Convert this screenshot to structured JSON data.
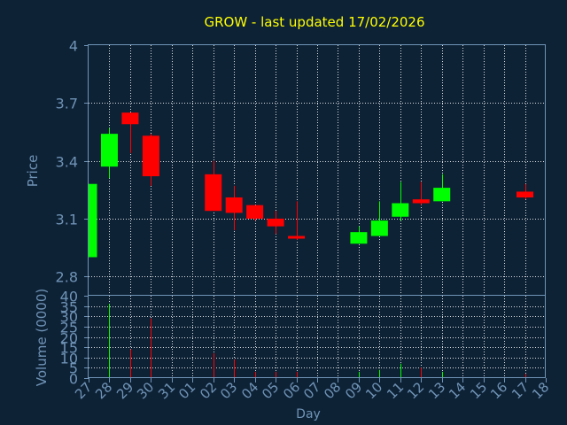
{
  "chart_data": [
    {
      "type": "candlestick",
      "title": "GROW - last updated 17/02/2026",
      "ylabel": "Price",
      "ylim": [
        2.7,
        4.0
      ],
      "yticks": [
        "4",
        "3.7",
        "3.4",
        "3.1",
        "2.8"
      ],
      "ytick_values": [
        4.0,
        3.7,
        3.4,
        3.1,
        2.8
      ],
      "grid": true,
      "up_color": "#00ff00",
      "down_color": "#ff0000",
      "x": [
        "27",
        "28",
        "29",
        "30",
        "31",
        "01",
        "02",
        "03",
        "04",
        "05",
        "06",
        "07",
        "08",
        "09",
        "10",
        "11",
        "12",
        "13",
        "14",
        "15",
        "16",
        "17",
        "18"
      ],
      "candles": [
        {
          "day": "27",
          "open": 2.9,
          "high": 3.28,
          "low": 2.9,
          "close": 3.28
        },
        {
          "day": "28",
          "open": 3.37,
          "high": 3.57,
          "low": 3.31,
          "close": 3.54
        },
        {
          "day": "29",
          "open": 3.65,
          "high": 3.65,
          "low": 3.44,
          "close": 3.59
        },
        {
          "day": "30",
          "open": 3.53,
          "high": 3.54,
          "low": 3.27,
          "close": 3.32
        },
        {
          "day": "02",
          "open": 3.33,
          "high": 3.4,
          "low": 3.14,
          "close": 3.14
        },
        {
          "day": "03",
          "open": 3.21,
          "high": 3.27,
          "low": 3.04,
          "close": 3.13
        },
        {
          "day": "04",
          "open": 3.17,
          "high": 3.17,
          "low": 3.09,
          "close": 3.1
        },
        {
          "day": "05",
          "open": 3.1,
          "high": 3.14,
          "low": 3.02,
          "close": 3.06
        },
        {
          "day": "06",
          "open": 3.01,
          "high": 3.19,
          "low": 2.99,
          "close": 3.0
        },
        {
          "day": "09",
          "open": 2.97,
          "high": 3.06,
          "low": 2.97,
          "close": 3.03
        },
        {
          "day": "10",
          "open": 3.01,
          "high": 3.19,
          "low": 3.01,
          "close": 3.09
        },
        {
          "day": "11",
          "open": 3.11,
          "high": 3.29,
          "low": 3.09,
          "close": 3.18
        },
        {
          "day": "12",
          "open": 3.2,
          "high": 3.29,
          "low": 3.17,
          "close": 3.18
        },
        {
          "day": "13",
          "open": 3.19,
          "high": 3.33,
          "low": 3.19,
          "close": 3.26
        },
        {
          "day": "17",
          "open": 3.24,
          "high": 3.28,
          "low": 3.2,
          "close": 3.21
        }
      ]
    },
    {
      "type": "bar",
      "ylabel": "Volume (0000)",
      "xlabel": "Day",
      "ylim": [
        0,
        40
      ],
      "yticks": [
        "40",
        "35",
        "30",
        "25",
        "20",
        "15",
        "10",
        "5",
        "0"
      ],
      "ytick_values": [
        40,
        35,
        30,
        25,
        20,
        15,
        10,
        5,
        0
      ],
      "grid": true,
      "categories": [
        "27",
        "28",
        "29",
        "30",
        "31",
        "01",
        "02",
        "03",
        "04",
        "05",
        "06",
        "07",
        "08",
        "09",
        "10",
        "11",
        "12",
        "13",
        "14",
        "15",
        "16",
        "17",
        "18"
      ],
      "values": [
        0,
        36,
        14,
        29,
        0,
        0,
        12,
        9,
        3,
        3,
        3,
        0,
        0,
        3,
        4,
        7,
        5,
        3,
        0,
        0,
        0,
        2,
        0
      ],
      "bar_colors": [
        "#00ff00",
        "#00ff00",
        "#ff0000",
        "#ff0000",
        "#ff0000",
        "#ff0000",
        "#ff0000",
        "#ff0000",
        "#ff0000",
        "#ff0000",
        "#ff0000",
        "#00ff00",
        "#00ff00",
        "#00ff00",
        "#00ff00",
        "#00ff00",
        "#ff0000",
        "#00ff00",
        "#00ff00",
        "#00ff00",
        "#00ff00",
        "#ff0000",
        "#ff0000"
      ]
    }
  ]
}
